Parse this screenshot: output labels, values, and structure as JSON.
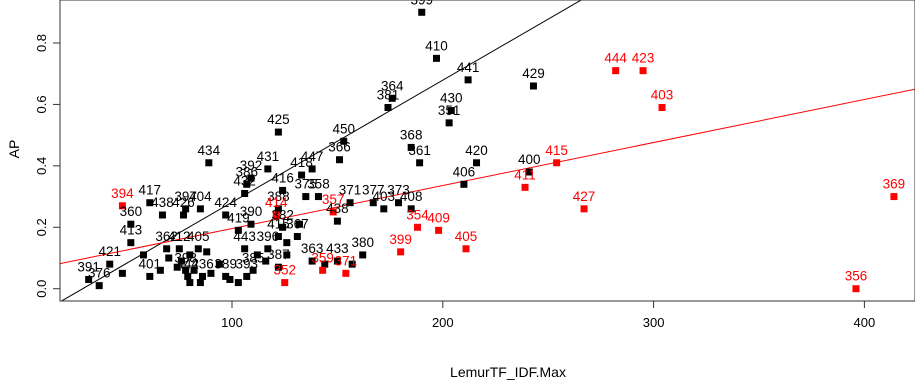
{
  "chart_data": {
    "type": "scatter",
    "title": "",
    "xlabel": "LemurTF_IDF.Max",
    "ylabel": "AP",
    "xlim": [
      18.4,
      424.0
    ],
    "ylim": [
      -0.04,
      0.94
    ],
    "xticks": [
      100,
      200,
      300,
      400
    ],
    "yticks": [
      0.0,
      0.2,
      0.4,
      0.6,
      0.8
    ],
    "ytick_labels": [
      "0.0",
      "0.2",
      "0.4",
      "0.6",
      "0.8"
    ],
    "grid": false,
    "legend": "none",
    "colors": {
      "black": "#000000",
      "red": "#ff0000",
      "frame": "#333333"
    },
    "lines": [
      {
        "color": "black",
        "intercept": -0.116,
        "slope": 0.003975
      },
      {
        "color": "red",
        "intercept": 0.056,
        "slope": 0.0014
      }
    ],
    "series": [
      {
        "color": "black",
        "points": [
          {
            "x": 190,
            "y": 0.9,
            "label": "399"
          },
          {
            "x": 197,
            "y": 0.75,
            "label": "410"
          },
          {
            "x": 212,
            "y": 0.68,
            "label": "441"
          },
          {
            "x": 243,
            "y": 0.66,
            "label": "429"
          },
          {
            "x": 176,
            "y": 0.62,
            "label": "364"
          },
          {
            "x": 174,
            "y": 0.59,
            "label": "381"
          },
          {
            "x": 204,
            "y": 0.58,
            "label": "430"
          },
          {
            "x": 203,
            "y": 0.54,
            "label": "351"
          },
          {
            "x": 122,
            "y": 0.51,
            "label": "425"
          },
          {
            "x": 153,
            "y": 0.48,
            "label": "450"
          },
          {
            "x": 185,
            "y": 0.46,
            "label": "368"
          },
          {
            "x": 151,
            "y": 0.42,
            "label": "366"
          },
          {
            "x": 89,
            "y": 0.41,
            "label": "434"
          },
          {
            "x": 189,
            "y": 0.41,
            "label": "361"
          },
          {
            "x": 216,
            "y": 0.41,
            "label": "420"
          },
          {
            "x": 117,
            "y": 0.39,
            "label": "431"
          },
          {
            "x": 138,
            "y": 0.39,
            "label": "447"
          },
          {
            "x": 133,
            "y": 0.37,
            "label": "418"
          },
          {
            "x": 109,
            "y": 0.36,
            "label": "392"
          },
          {
            "x": 107,
            "y": 0.34,
            "label": "386"
          },
          {
            "x": 210,
            "y": 0.34,
            "label": "406"
          },
          {
            "x": 241,
            "y": 0.38,
            "label": "400"
          },
          {
            "x": 106,
            "y": 0.31,
            "label": "432"
          },
          {
            "x": 124,
            "y": 0.32,
            "label": "416"
          },
          {
            "x": 135,
            "y": 0.3,
            "label": "375"
          },
          {
            "x": 141,
            "y": 0.3,
            "label": "358"
          },
          {
            "x": 61,
            "y": 0.28,
            "label": "417"
          },
          {
            "x": 156,
            "y": 0.28,
            "label": "371"
          },
          {
            "x": 167,
            "y": 0.28,
            "label": "377"
          },
          {
            "x": 179,
            "y": 0.28,
            "label": "373"
          },
          {
            "x": 172,
            "y": 0.26,
            "label": "403"
          },
          {
            "x": 185,
            "y": 0.26,
            "label": "408"
          },
          {
            "x": 78,
            "y": 0.26,
            "label": "397"
          },
          {
            "x": 85,
            "y": 0.26,
            "label": "404"
          },
          {
            "x": 67,
            "y": 0.24,
            "label": "438"
          },
          {
            "x": 77,
            "y": 0.24,
            "label": "426"
          },
          {
            "x": 97,
            "y": 0.24,
            "label": "424"
          },
          {
            "x": 122,
            "y": 0.26,
            "label": "388"
          },
          {
            "x": 150,
            "y": 0.22,
            "label": "438"
          },
          {
            "x": 52,
            "y": 0.21,
            "label": "360"
          },
          {
            "x": 109,
            "y": 0.21,
            "label": "390"
          },
          {
            "x": 124,
            "y": 0.2,
            "label": "382"
          },
          {
            "x": 52,
            "y": 0.15,
            "label": "413"
          },
          {
            "x": 103,
            "y": 0.19,
            "label": "419"
          },
          {
            "x": 131,
            "y": 0.17,
            "label": "367"
          },
          {
            "x": 122,
            "y": 0.17,
            "label": "415"
          },
          {
            "x": 69,
            "y": 0.13,
            "label": "362"
          },
          {
            "x": 75,
            "y": 0.13,
            "label": "412"
          },
          {
            "x": 84,
            "y": 0.13,
            "label": "405"
          },
          {
            "x": 106,
            "y": 0.13,
            "label": "443"
          },
          {
            "x": 117,
            "y": 0.13,
            "label": "396"
          },
          {
            "x": 42,
            "y": 0.08,
            "label": "421"
          },
          {
            "x": 162,
            "y": 0.11,
            "label": "380"
          },
          {
            "x": 150,
            "y": 0.09,
            "label": "433"
          },
          {
            "x": 110,
            "y": 0.06,
            "label": "385"
          },
          {
            "x": 122,
            "y": 0.07,
            "label": "387"
          },
          {
            "x": 32,
            "y": 0.03,
            "label": "391"
          },
          {
            "x": 37,
            "y": 0.01,
            "label": "376"
          },
          {
            "x": 61,
            "y": 0.04,
            "label": "401"
          },
          {
            "x": 86,
            "y": 0.04,
            "label": "436"
          },
          {
            "x": 97,
            "y": 0.04,
            "label": "389"
          },
          {
            "x": 107,
            "y": 0.04,
            "label": "393"
          },
          {
            "x": 78,
            "y": 0.06,
            "label": "398"
          },
          {
            "x": 79,
            "y": 0.04,
            "label": "442"
          },
          {
            "x": 138,
            "y": 0.09,
            "label": "363"
          },
          {
            "x": 76,
            "y": 0.09
          },
          {
            "x": 80,
            "y": 0.11
          },
          {
            "x": 88,
            "y": 0.12
          },
          {
            "x": 70,
            "y": 0.1
          },
          {
            "x": 74,
            "y": 0.07
          },
          {
            "x": 82,
            "y": 0.06
          },
          {
            "x": 90,
            "y": 0.05
          },
          {
            "x": 94,
            "y": 0.08
          },
          {
            "x": 99,
            "y": 0.03
          },
          {
            "x": 103,
            "y": 0.02
          },
          {
            "x": 85,
            "y": 0.02
          },
          {
            "x": 80,
            "y": 0.02
          },
          {
            "x": 66,
            "y": 0.06
          },
          {
            "x": 58,
            "y": 0.11
          },
          {
            "x": 48,
            "y": 0.05
          },
          {
            "x": 112,
            "y": 0.11
          },
          {
            "x": 116,
            "y": 0.09
          },
          {
            "x": 126,
            "y": 0.11
          },
          {
            "x": 144,
            "y": 0.08
          },
          {
            "x": 157,
            "y": 0.08
          },
          {
            "x": 126,
            "y": 0.15
          },
          {
            "x": 132,
            "y": 0.21
          }
        ]
      },
      {
        "color": "red",
        "points": [
          {
            "x": 282,
            "y": 0.71,
            "label": "444"
          },
          {
            "x": 295,
            "y": 0.71,
            "label": "423"
          },
          {
            "x": 304,
            "y": 0.59,
            "label": "403"
          },
          {
            "x": 254,
            "y": 0.41,
            "label": "415"
          },
          {
            "x": 239,
            "y": 0.33,
            "label": "411"
          },
          {
            "x": 48,
            "y": 0.27,
            "label": "394"
          },
          {
            "x": 148,
            "y": 0.25,
            "label": "357"
          },
          {
            "x": 267,
            "y": 0.26,
            "label": "427"
          },
          {
            "x": 414,
            "y": 0.3,
            "label": "369"
          },
          {
            "x": 188,
            "y": 0.2,
            "label": "354"
          },
          {
            "x": 198,
            "y": 0.19,
            "label": "409"
          },
          {
            "x": 180,
            "y": 0.12,
            "label": "399"
          },
          {
            "x": 211,
            "y": 0.13,
            "label": "405"
          },
          {
            "x": 154,
            "y": 0.05,
            "label": "371"
          },
          {
            "x": 143,
            "y": 0.06,
            "label": "359"
          },
          {
            "x": 125,
            "y": 0.02,
            "label": "352"
          },
          {
            "x": 396,
            "y": 0.0,
            "label": "356"
          },
          {
            "x": 121,
            "y": 0.24,
            "label": "414"
          }
        ]
      }
    ]
  },
  "axis_labels": {
    "x": "LemurTF_IDF.Max",
    "y": "AP"
  }
}
